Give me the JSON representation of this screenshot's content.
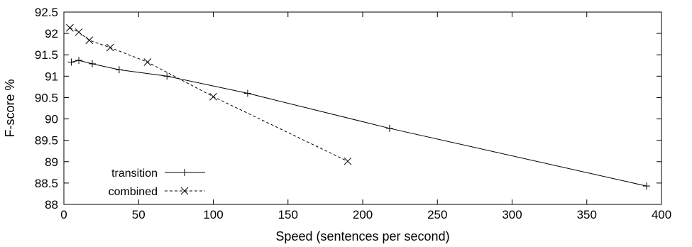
{
  "chart_data": {
    "type": "line",
    "title": "",
    "xlabel": "Speed (sentences per second)",
    "ylabel": "F-score %",
    "xlim": [
      0,
      400
    ],
    "ylim": [
      88,
      92.5
    ],
    "x_ticks": [
      0,
      50,
      100,
      150,
      200,
      250,
      300,
      350,
      400
    ],
    "y_ticks": [
      88,
      88.5,
      89,
      89.5,
      90,
      90.5,
      91,
      91.5,
      92,
      92.5
    ],
    "x_tick_labels": [
      "0",
      "50",
      "100",
      "150",
      "200",
      "250",
      "300",
      "350",
      "400"
    ],
    "y_tick_labels": [
      "88",
      "88.5",
      "89",
      "89.5",
      "90",
      "90.5",
      "91",
      "91.5",
      "92",
      "92.5"
    ],
    "grid": false,
    "legend_position": "bottom-left",
    "series": [
      {
        "name": "transition",
        "line_style": "solid",
        "marker": "plus",
        "color": "#000000",
        "points": [
          [
            5,
            91.33
          ],
          [
            10,
            91.37
          ],
          [
            19,
            91.29
          ],
          [
            37,
            91.15
          ],
          [
            69,
            91.0
          ],
          [
            123,
            90.6
          ],
          [
            218,
            89.78
          ],
          [
            390,
            88.43
          ]
        ]
      },
      {
        "name": "combined",
        "line_style": "dashed",
        "marker": "cross",
        "color": "#000000",
        "points": [
          [
            4,
            92.13
          ],
          [
            10,
            92.03
          ],
          [
            17,
            91.84
          ],
          [
            31,
            91.67
          ],
          [
            56,
            91.33
          ],
          [
            100,
            90.52
          ],
          [
            190,
            89.01
          ]
        ]
      }
    ]
  }
}
